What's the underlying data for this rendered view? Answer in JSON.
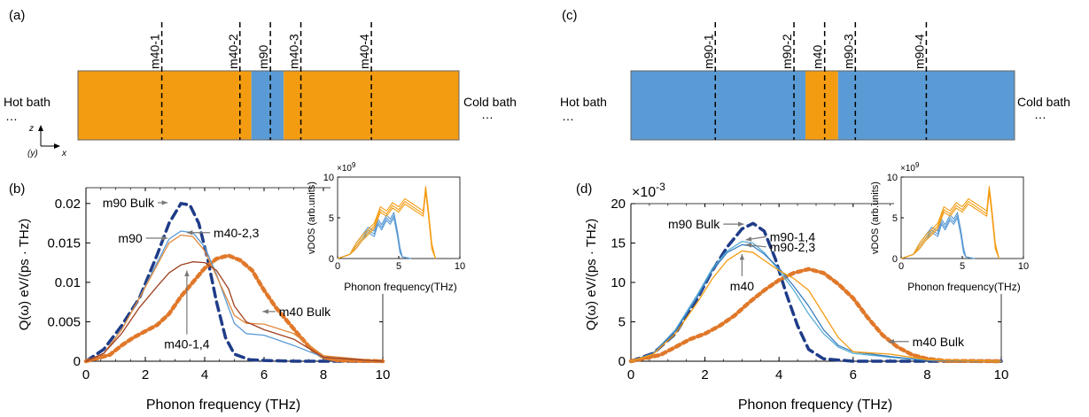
{
  "figure": {
    "panel_labels": [
      "(a)",
      "(b)",
      "(c)",
      "(d)"
    ],
    "axes_indicator": {
      "z": "z",
      "y": "(y)",
      "x": "x"
    },
    "ellipsis": "…",
    "colors": {
      "m40": "#f39c12",
      "m90": "#5b9bd5",
      "axis": "#000000"
    }
  },
  "schematic_a": {
    "hot_label": "Hot bath",
    "cold_label": "Cold bath",
    "segments": [
      {
        "material": "m40",
        "from": 0.0,
        "to": 0.455
      },
      {
        "material": "m90",
        "from": 0.455,
        "to": 0.54
      },
      {
        "material": "m40",
        "from": 0.54,
        "to": 1.0
      }
    ],
    "probes": [
      {
        "label": "m40-1",
        "at": 0.22
      },
      {
        "label": "m40-2",
        "at": 0.425
      },
      {
        "label": "m90",
        "at": 0.505
      },
      {
        "label": "m40-3",
        "at": 0.585
      },
      {
        "label": "m40-4",
        "at": 0.77
      }
    ]
  },
  "schematic_c": {
    "hot_label": "Hot bath",
    "cold_label": "Cold bath",
    "segments": [
      {
        "material": "m90",
        "from": 0.0,
        "to": 0.455
      },
      {
        "material": "m40",
        "from": 0.455,
        "to": 0.54
      },
      {
        "material": "m90",
        "from": 0.54,
        "to": 1.0
      }
    ],
    "probes": [
      {
        "label": "m90-1",
        "at": 0.22
      },
      {
        "label": "m90-2",
        "at": 0.425
      },
      {
        "label": "m40",
        "at": 0.505
      },
      {
        "label": "m90-3",
        "at": 0.585
      },
      {
        "label": "m90-4",
        "at": 0.77
      }
    ]
  },
  "chart_data": [
    {
      "panel": "(b)",
      "type": "line",
      "xlabel": "Phonon frequency (THz)",
      "ylabel": "Q(ω) eV/(ps · THz)",
      "xlim": [
        0,
        10
      ],
      "ylim": [
        0,
        0.022
      ],
      "xticks": [
        "0",
        "2",
        "4",
        "6",
        "8",
        "10"
      ],
      "yticks": [
        "0",
        "0.005",
        "0.01",
        "0.015",
        "0.02"
      ],
      "ytick_values": [
        0,
        0.005,
        0.01,
        0.015,
        0.02
      ],
      "exponent_label": "",
      "series": [
        {
          "name": "m90 Bulk",
          "color": "#1f3c88",
          "style": "dashed",
          "x": [
            0,
            0.6,
            1.2,
            1.8,
            2.4,
            2.8,
            3.2,
            3.5,
            3.8,
            4.1,
            4.4,
            4.7,
            5,
            5.5,
            6,
            7,
            8,
            10
          ],
          "y": [
            0,
            0.0015,
            0.0045,
            0.008,
            0.0135,
            0.0175,
            0.02,
            0.0198,
            0.0175,
            0.013,
            0.0075,
            0.003,
            0.0009,
            0.0002,
            0.0001,
            0,
            0,
            0
          ]
        },
        {
          "name": "m40 Bulk",
          "color": "#e0782a",
          "style": "dotted",
          "x": [
            0,
            0.8,
            1.2,
            1.6,
            2,
            2.4,
            2.8,
            3.2,
            3.6,
            4,
            4.4,
            4.8,
            5.2,
            5.6,
            6,
            6.4,
            6.8,
            7.2,
            7.6,
            8,
            8.5,
            10
          ],
          "y": [
            0,
            0.0008,
            0.002,
            0.003,
            0.0038,
            0.0046,
            0.006,
            0.0082,
            0.01,
            0.0118,
            0.013,
            0.0134,
            0.0128,
            0.0115,
            0.009,
            0.0068,
            0.005,
            0.0032,
            0.0015,
            0.0005,
            0.0001,
            0
          ]
        },
        {
          "name": "m90",
          "color": "#5b9bd5",
          "style": "solid",
          "x": [
            0,
            0.6,
            1.2,
            1.8,
            2.4,
            2.8,
            3.2,
            3.6,
            4,
            4.4,
            4.8,
            5,
            5.4,
            6,
            7,
            8,
            10
          ],
          "y": [
            0,
            0.001,
            0.004,
            0.008,
            0.0125,
            0.0155,
            0.0165,
            0.0163,
            0.0145,
            0.011,
            0.0068,
            0.0048,
            0.0035,
            0.0033,
            0.002,
            0.0005,
            0
          ]
        },
        {
          "name": "m40-2,3",
          "color": "#e08a3c",
          "style": "solid",
          "x": [
            0,
            0.6,
            1.2,
            1.8,
            2.4,
            2.8,
            3.2,
            3.6,
            4,
            4.4,
            4.8,
            5,
            5.4,
            6,
            7,
            8,
            10
          ],
          "y": [
            0,
            0.001,
            0.004,
            0.008,
            0.0122,
            0.015,
            0.016,
            0.0158,
            0.014,
            0.0108,
            0.0075,
            0.0058,
            0.0048,
            0.0047,
            0.0035,
            0.0007,
            0
          ]
        },
        {
          "name": "m40-1,4",
          "color": "#a0401f",
          "style": "solid",
          "x": [
            0,
            0.6,
            1.2,
            1.8,
            2.4,
            2.8,
            3.2,
            3.6,
            4,
            4.4,
            4.8,
            5,
            5.4,
            6,
            7,
            8,
            10
          ],
          "y": [
            0,
            0.001,
            0.0035,
            0.0068,
            0.0095,
            0.0112,
            0.0122,
            0.0126,
            0.0125,
            0.0115,
            0.0092,
            0.007,
            0.005,
            0.004,
            0.0028,
            0.0005,
            0
          ]
        }
      ],
      "annotations": [
        {
          "text": "m90 Bulk",
          "x": 2.3,
          "y": 0.0201,
          "ax": 2.75,
          "ay": 0.0201
        },
        {
          "text": "m90",
          "x": 1.9,
          "y": 0.0156,
          "ax": 2.75,
          "ay": 0.0156
        },
        {
          "text": "m40-2,3",
          "x": 4.3,
          "y": 0.0163,
          "ax": 3.4,
          "ay": 0.0163
        },
        {
          "text": "m40-1,4",
          "x": 3.4,
          "y": 0.0034,
          "ax": 3.4,
          "ay": 0.0115
        },
        {
          "text": "m40 Bulk",
          "x": 6.5,
          "y": 0.0063,
          "ax": 5.95,
          "ay": 0.0063
        }
      ],
      "inset": {
        "xlabel": "Phonon frequency(THz)",
        "ylabel": "vDOS (arb.units)",
        "exponent": "×10^9",
        "exponent_base": "×10",
        "exponent_power": "9",
        "xlim": [
          0,
          10
        ],
        "ylim": [
          0,
          10
        ],
        "xticks": [
          "0",
          "5",
          "10"
        ],
        "yticks": [
          "0",
          "5",
          "10"
        ],
        "series": [
          {
            "name": "m90",
            "color": "#5b9bd5",
            "x": [
              0,
              1,
              1.5,
              2,
              2.5,
              3,
              3.3,
              3.6,
              4,
              4.3,
              4.6,
              4.9,
              5.1,
              5.3,
              6
            ],
            "y": [
              0,
              0.5,
              1.5,
              2.5,
              3.5,
              3,
              4.5,
              3.8,
              5.0,
              4.5,
              5.3,
              3.0,
              1.0,
              0.2,
              0
            ]
          },
          {
            "name": "m40",
            "color": "#f39c12",
            "x": [
              0,
              1,
              1.5,
              2,
              2.5,
              3,
              3.5,
              4,
              4.5,
              5,
              5.5,
              6,
              6.5,
              7,
              7.2,
              7.4,
              7.7,
              8
            ],
            "y": [
              0,
              0.5,
              1.5,
              2.5,
              3.2,
              4.0,
              6.0,
              5.5,
              6.5,
              6.0,
              7.0,
              6.5,
              6.0,
              5.5,
              8.5,
              6.0,
              1.5,
              0
            ]
          }
        ]
      }
    },
    {
      "panel": "(d)",
      "type": "line",
      "xlabel": "Phonon frequency (THz)",
      "ylabel": "Q(ω) eV/(ps · THz)",
      "xlim": [
        0,
        10
      ],
      "ylim": [
        0,
        20
      ],
      "xticks": [
        "0",
        "2",
        "4",
        "6",
        "8",
        "10"
      ],
      "yticks": [
        "0",
        "5",
        "10",
        "15",
        "20"
      ],
      "ytick_values": [
        0,
        5,
        10,
        15,
        20
      ],
      "exponent_label": "×10^-3",
      "exponent_base": "×10",
      "exponent_power": "-3",
      "series": [
        {
          "name": "m90 Bulk",
          "color": "#1f3c88",
          "style": "dashed",
          "x": [
            0,
            0.6,
            1.2,
            1.8,
            2.2,
            2.6,
            3,
            3.3,
            3.6,
            3.9,
            4.2,
            4.5,
            4.8,
            5.2,
            6,
            10
          ],
          "y": [
            0,
            1.0,
            3.5,
            8.0,
            11.5,
            14.5,
            16.8,
            17.5,
            16.5,
            13.0,
            8.5,
            4.5,
            1.5,
            0.3,
            0,
            0
          ]
        },
        {
          "name": "m40 Bulk",
          "color": "#e0782a",
          "style": "dotted",
          "x": [
            0,
            0.8,
            1.2,
            1.6,
            2,
            2.4,
            2.8,
            3.2,
            3.6,
            4,
            4.4,
            4.8,
            5.2,
            5.6,
            6,
            6.4,
            6.8,
            7.2,
            7.6,
            8,
            8.5,
            10
          ],
          "y": [
            0,
            0.8,
            1.8,
            2.8,
            3.5,
            4.5,
            5.8,
            7.5,
            9.0,
            10.3,
            11.2,
            11.7,
            11.2,
            9.8,
            8.0,
            5.5,
            3.3,
            1.8,
            0.8,
            0.3,
            0.05,
            0
          ]
        },
        {
          "name": "m90-1,4",
          "color": "#5bafd5",
          "style": "solid",
          "x": [
            0,
            0.6,
            1.2,
            1.8,
            2.2,
            2.6,
            3,
            3.3,
            3.6,
            4,
            4.4,
            4.8,
            5.2,
            5.6,
            6,
            7,
            8,
            10
          ],
          "y": [
            0,
            1.0,
            4.0,
            8.5,
            11.8,
            14.0,
            15.2,
            15.0,
            13.8,
            11.5,
            9.0,
            6.0,
            3.5,
            1.8,
            1.0,
            0.5,
            0.1,
            0
          ]
        },
        {
          "name": "m90-2,3",
          "color": "#3a7fc0",
          "style": "solid",
          "x": [
            0,
            0.6,
            1.2,
            1.8,
            2.2,
            2.6,
            3,
            3.3,
            3.6,
            4,
            4.4,
            4.8,
            5.2,
            5.6,
            6,
            7,
            8,
            10
          ],
          "y": [
            0,
            1.0,
            3.8,
            8.2,
            11.5,
            13.8,
            14.8,
            14.6,
            13.6,
            11.8,
            9.5,
            7.0,
            4.0,
            2.0,
            1.2,
            0.6,
            0.1,
            0
          ]
        },
        {
          "name": "m40",
          "color": "#f39c12",
          "style": "solid",
          "x": [
            0,
            0.6,
            1.2,
            1.8,
            2.2,
            2.6,
            3,
            3.3,
            3.6,
            4,
            4.4,
            4.8,
            5.2,
            5.6,
            6,
            7,
            8,
            10
          ],
          "y": [
            0,
            0.9,
            3.5,
            7.5,
            10.5,
            12.8,
            14.0,
            13.8,
            12.8,
            11.5,
            10.5,
            9.0,
            6.0,
            3.0,
            1.2,
            0.9,
            0.2,
            0
          ]
        }
      ],
      "annotations": [
        {
          "text": "m90 Bulk",
          "x": 2.4,
          "y": 17.4,
          "ax": 3.05,
          "ay": 17.4
        },
        {
          "text": "m90-1,4",
          "x": 3.75,
          "y": 15.8,
          "ax": 3.1,
          "ay": 15.4
        },
        {
          "text": "m90-2,3",
          "x": 3.75,
          "y": 14.5,
          "ax": 3.1,
          "ay": 14.8
        },
        {
          "text": "m40",
          "x": 3.0,
          "y": 10.8,
          "ax": 3.0,
          "ay": 13.6
        },
        {
          "text": "m40 Bulk",
          "x": 7.6,
          "y": 2.5,
          "ax": 6.95,
          "ay": 2.5
        }
      ],
      "inset": {
        "xlabel": "Phonon frequency(THz)",
        "ylabel": "vDOS (arb.units)",
        "exponent": "×10^9",
        "exponent_base": "×10",
        "exponent_power": "9",
        "xlim": [
          0,
          10
        ],
        "ylim": [
          0,
          10
        ],
        "xticks": [
          "0",
          "5",
          "10"
        ],
        "yticks": [
          "0",
          "5",
          "10"
        ],
        "series": [
          {
            "name": "m90",
            "color": "#5b9bd5",
            "x": [
              0,
              1,
              1.5,
              2,
              2.5,
              3,
              3.3,
              3.6,
              4,
              4.3,
              4.6,
              4.9,
              5.1,
              5.3,
              6
            ],
            "y": [
              0,
              0.5,
              1.5,
              2.5,
              3.5,
              3.0,
              4.5,
              3.8,
              5.0,
              4.5,
              5.3,
              3.0,
              1.0,
              0.2,
              0
            ]
          },
          {
            "name": "m40",
            "color": "#f39c12",
            "x": [
              0,
              1,
              1.5,
              2,
              2.5,
              3,
              3.5,
              4,
              4.5,
              5,
              5.5,
              6,
              6.5,
              7,
              7.2,
              7.4,
              7.7,
              8
            ],
            "y": [
              0,
              0.5,
              1.5,
              2.5,
              3.2,
              4.0,
              6.0,
              5.5,
              6.5,
              6.0,
              7.0,
              6.5,
              6.0,
              5.5,
              8.5,
              6.0,
              1.5,
              0
            ]
          }
        ]
      }
    }
  ]
}
